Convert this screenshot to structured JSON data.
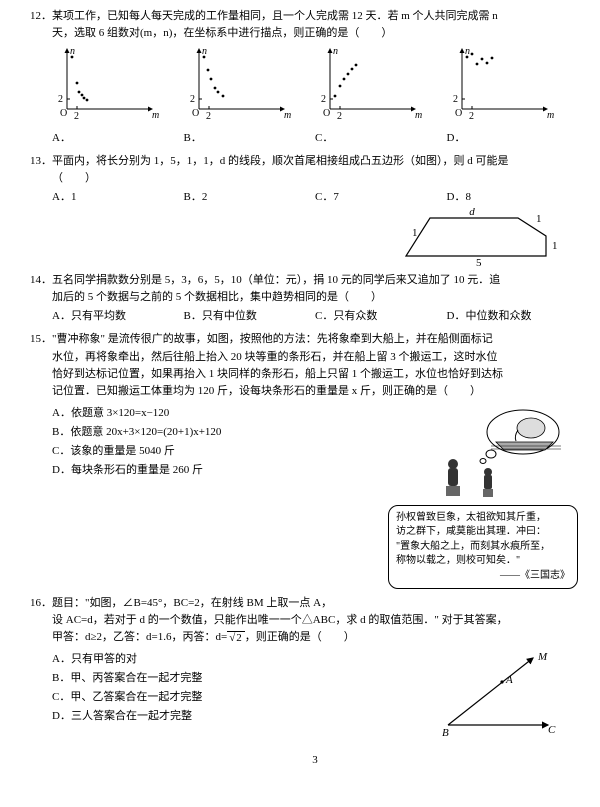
{
  "page_number": "3",
  "q12": {
    "num": "12．",
    "text_l1": "某项工作，已知每人每天完成的工作量相同，且一个人完成需 12 天．若 m 个人共同完成需 n",
    "text_l2": "天，选取 6 组数对(m，n)，在坐标系中进行描点，则正确的是（　　）",
    "labels": {
      "a": "A．",
      "b": "B．",
      "c": "C．",
      "d": "D．"
    },
    "axis": {
      "x": "m",
      "y": "n",
      "xt": "2",
      "yt": "2"
    },
    "charts": {
      "a": [
        [
          20,
          13
        ],
        [
          25,
          39
        ],
        [
          27,
          48
        ],
        [
          30,
          51
        ],
        [
          32,
          54
        ],
        [
          35,
          56
        ]
      ],
      "b": [
        [
          20,
          13
        ],
        [
          24,
          26
        ],
        [
          27,
          35
        ],
        [
          31,
          44
        ],
        [
          34,
          48
        ],
        [
          39,
          52
        ]
      ],
      "c": [
        [
          20,
          52
        ],
        [
          25,
          42
        ],
        [
          29,
          35
        ],
        [
          33,
          30
        ],
        [
          37,
          25
        ],
        [
          41,
          21
        ]
      ],
      "d": [
        [
          20,
          13
        ],
        [
          25,
          10
        ],
        [
          30,
          20
        ],
        [
          35,
          15
        ],
        [
          40,
          19
        ],
        [
          45,
          14
        ]
      ]
    },
    "colors": {
      "axis": "#000",
      "tick": "#000",
      "point": "#000"
    }
  },
  "q13": {
    "num": "13．",
    "text_l1": "平面内，将长分别为 1，5，1，1，d 的线段，顺次首尾相接组成凸五边形（如图），则 d 可能是",
    "text_l2": "（　　）",
    "opts": {
      "a": "A．1",
      "b": "B．2",
      "c": "C．7",
      "d": "D．8"
    },
    "fig_labels": {
      "d": "d",
      "one_a": "1",
      "one_b": "1",
      "one_c": "1",
      "five": "5"
    }
  },
  "q14": {
    "num": "14．",
    "text_l1": "五名同学捐款数分别是 5，3，6，5，10（单位：元），捐 10 元的同学后来又追加了 10 元．追",
    "text_l2": "加后的 5 个数据与之前的 5 个数据相比，集中趋势相同的是（　　）",
    "opts": {
      "a": "A．只有平均数",
      "b": "B．只有中位数",
      "c": "C．只有众数",
      "d": "D．中位数和众数"
    }
  },
  "q15": {
    "num": "15．",
    "text_l1": "\"曹冲称象\" 是流传很广的故事，如图，按照他的方法：先将象牵到大船上，并在船侧面标记",
    "text_l2": "水位，再将象牵出，然后往船上抬入 20 块等重的条形石，并在船上留 3 个搬运工，这时水位",
    "text_l3": "恰好到达标记位置，如果再抬入 1 块同样的条形石，船上只留 1 个搬运工，水位也恰好到达标",
    "text_l4": "记位置．已知搬运工体重均为 120 斤，设每块条形石的重量是 x 斤，则正确的是（　　）",
    "opts": {
      "a": "A．依题意 3×120=x−120",
      "b": "B．依题意 20x+3×120=(20+1)x+120",
      "c": "C．该象的重量是 5040 斤",
      "d": "D．每块条形石的重量是 260 斤"
    },
    "story": {
      "l1": "孙权曾致巨象，太祖欲知其斤重，",
      "l2": "访之群下，咸莫能出其理．冲曰：",
      "l3": "\"置象大船之上，而刻其水痕所至，",
      "l4": "称物以载之，则校可知矣．\"",
      "src": "——《三国志》"
    }
  },
  "q16": {
    "num": "16．",
    "text_l1": "题目：\"如图，∠B=45°，BC=2，在射线 BM 上取一点 A，",
    "text_l2": "设 AC=d，若对于 d 的一个数值，只能作出唯一一个△ABC，求 d 的取值范围．\" 对于其答案，",
    "text_l3_a": "甲答：d≥2，乙答：d=1.6，丙答：d=",
    "text_l3_b": "，则正确的是（　　）",
    "sqrt2": "2",
    "opts": {
      "a": "A．只有甲答的对",
      "b": "B．甲、丙答案合在一起才完整",
      "c": "C．甲、乙答案合在一起才完整",
      "d": "D．三人答案合在一起才完整"
    },
    "fig": {
      "M": "M",
      "A": "A",
      "B": "B",
      "C": "C"
    }
  }
}
